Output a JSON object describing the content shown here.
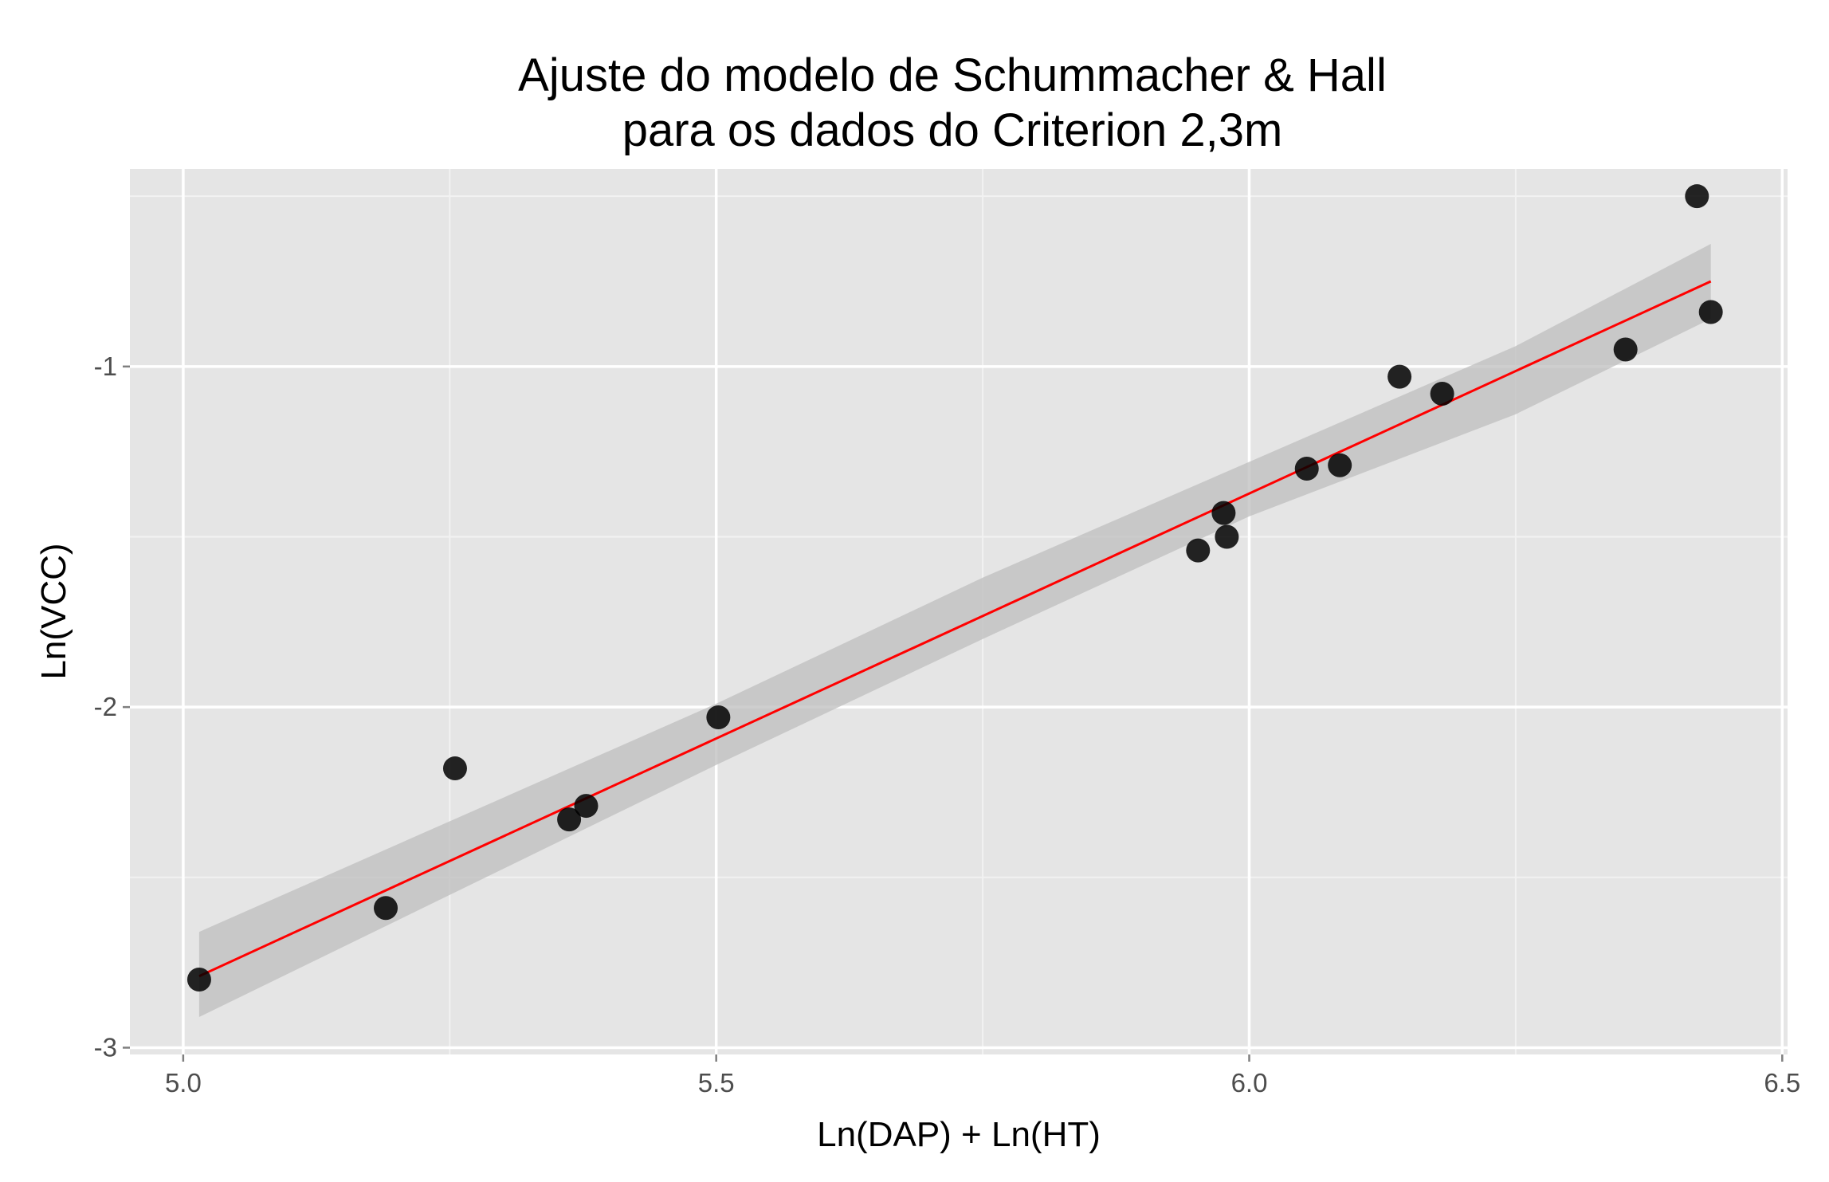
{
  "chart_data": {
    "type": "scatter",
    "title_lines": [
      "Ajuste do modelo de Schummacher & Hall",
      "para os dados do Criterion 2,3m"
    ],
    "xlabel": "Ln(DAP) + Ln(HT)",
    "ylabel": "Ln(VCC)",
    "xlim": [
      4.95,
      6.505
    ],
    "ylim": [
      -3.02,
      -0.42
    ],
    "x_ticks": [
      5.0,
      5.5,
      6.0,
      6.5
    ],
    "x_tick_labels": [
      "5.0",
      "5.5",
      "6.0",
      "6.5"
    ],
    "y_ticks": [
      -3,
      -2,
      -1
    ],
    "y_tick_labels": [
      "-3",
      "-2",
      "-1"
    ],
    "grid": true,
    "legend": "none",
    "colors": {
      "panel": "#e5e5e5",
      "grid_major": "#ffffff",
      "grid_minor": "#f2f2f2",
      "points": "#000000",
      "fit_line": "#ff0000",
      "confidence_band": "#bdbdbd"
    },
    "points": [
      {
        "x": 5.015,
        "y": -2.8
      },
      {
        "x": 5.19,
        "y": -2.59
      },
      {
        "x": 5.255,
        "y": -2.18
      },
      {
        "x": 5.362,
        "y": -2.33
      },
      {
        "x": 5.378,
        "y": -2.29
      },
      {
        "x": 5.502,
        "y": -2.03
      },
      {
        "x": 5.952,
        "y": -1.54
      },
      {
        "x": 5.976,
        "y": -1.43
      },
      {
        "x": 5.979,
        "y": -1.5
      },
      {
        "x": 6.054,
        "y": -1.3
      },
      {
        "x": 6.085,
        "y": -1.29
      },
      {
        "x": 6.141,
        "y": -1.03
      },
      {
        "x": 6.181,
        "y": -1.08
      },
      {
        "x": 6.353,
        "y": -0.95
      },
      {
        "x": 6.42,
        "y": -0.5
      },
      {
        "x": 6.433,
        "y": -0.84
      }
    ],
    "fit_line": {
      "x": [
        5.015,
        6.433
      ],
      "y": [
        -2.79,
        -0.75
      ]
    },
    "confidence_band": {
      "x": [
        5.015,
        5.5,
        5.75,
        6.0,
        6.25,
        6.433
      ],
      "upper": [
        -2.66,
        -1.99,
        -1.62,
        -1.28,
        -0.94,
        -0.64
      ],
      "lower": [
        -2.91,
        -2.17,
        -1.8,
        -1.44,
        -1.14,
        -0.86
      ]
    }
  }
}
